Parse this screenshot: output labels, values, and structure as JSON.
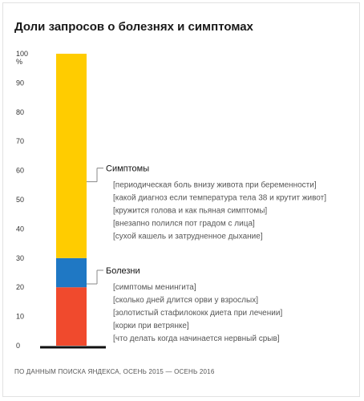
{
  "chart_data": {
    "type": "bar",
    "stacked": true,
    "title": "Доли запросов о болезнях и симптомах",
    "y_unit": "%",
    "ylim": [
      0,
      100
    ],
    "y_ticks": [
      "0",
      "10",
      "20",
      "30",
      "40",
      "50",
      "60",
      "70",
      "80",
      "90",
      "100"
    ],
    "segments": [
      {
        "from": 0,
        "to": 20,
        "color": "#f04a2d"
      },
      {
        "from": 20,
        "to": 30,
        "color": "#1f78c4"
      },
      {
        "from": 30,
        "to": 100,
        "color": "#ffcc00"
      }
    ],
    "annotations": [
      {
        "label": "Симптомы",
        "at": 60,
        "queries": [
          "[периодическая боль внизу живота при беременности]",
          "[какой диагноз если температура тела 38 и крутит живот]",
          "[кружится голова и как пьяная симптомы]",
          "[внезапно полился пот градом с лица]",
          "[сухой кашель и затрудненное дыхание]"
        ]
      },
      {
        "label": "Болезни",
        "at": 25,
        "queries": [
          "[симптомы менингита]",
          "[сколько дней длится орви у взрослых]",
          "[золотистый стафилококк диета при лечении]",
          "[корки при ветрянке]",
          "[что делать когда начинается нервный срыв]"
        ]
      }
    ],
    "source": "ПО ДАННЫМ ПОИСКА ЯНДЕКСА, ОСЕНЬ 2015 — ОСЕНЬ 2016"
  }
}
